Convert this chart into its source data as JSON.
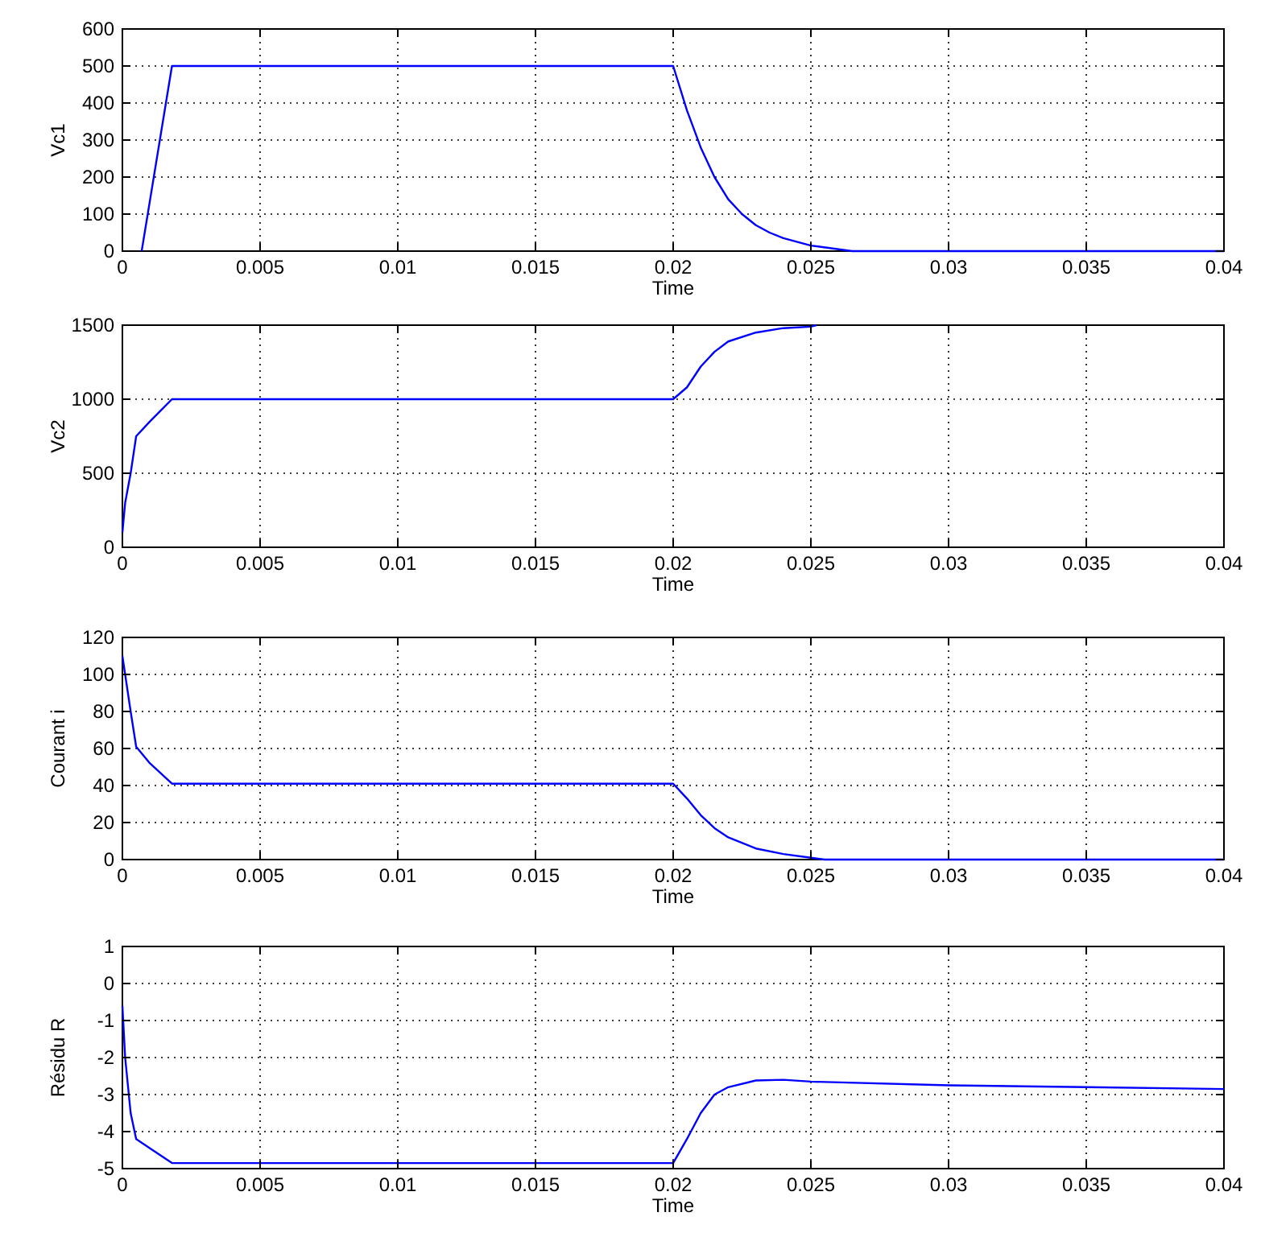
{
  "chart_data": [
    {
      "type": "line",
      "xlabel": "Time",
      "ylabel": "Vc1",
      "xlim": [
        0,
        0.04
      ],
      "ylim": [
        0,
        600
      ],
      "xticks": [
        0,
        0.005,
        0.01,
        0.015,
        0.02,
        0.025,
        0.03,
        0.035,
        0.04
      ],
      "yticks": [
        0,
        100,
        200,
        300,
        400,
        500,
        600
      ],
      "grid": true,
      "series": [
        {
          "color": "#0000ff",
          "x": [
            0.0007,
            0.0018,
            0.02,
            0.0205,
            0.021,
            0.0215,
            0.022,
            0.0225,
            0.023,
            0.0235,
            0.024,
            0.025,
            0.0265,
            0.04
          ],
          "values": [
            0,
            500,
            500,
            380,
            280,
            200,
            140,
            100,
            70,
            50,
            35,
            15,
            0,
            0
          ]
        }
      ]
    },
    {
      "type": "line",
      "xlabel": "Time",
      "ylabel": "Vc2",
      "xlim": [
        0,
        0.04
      ],
      "ylim": [
        0,
        1500
      ],
      "xticks": [
        0,
        0.005,
        0.01,
        0.015,
        0.02,
        0.025,
        0.03,
        0.035,
        0.04
      ],
      "yticks": [
        0,
        500,
        1000,
        1500
      ],
      "grid": true,
      "series": [
        {
          "color": "#0000ff",
          "x": [
            0,
            0.0001,
            0.0003,
            0.0005,
            0.001,
            0.0018,
            0.003,
            0.01,
            0.013,
            0.02,
            0.0205,
            0.021,
            0.0215,
            0.022,
            0.023,
            0.024,
            0.025,
            0.0252
          ],
          "values": [
            100,
            300,
            500,
            750,
            850,
            1000,
            1000,
            1000,
            1000,
            1000,
            1080,
            1220,
            1320,
            1390,
            1450,
            1480,
            1490,
            1500
          ]
        }
      ]
    },
    {
      "type": "line",
      "xlabel": "Time",
      "ylabel": "Courant i",
      "xlim": [
        0,
        0.04
      ],
      "ylim": [
        0,
        120
      ],
      "xticks": [
        0,
        0.005,
        0.01,
        0.015,
        0.02,
        0.025,
        0.03,
        0.035,
        0.04
      ],
      "yticks": [
        0,
        20,
        40,
        60,
        80,
        100,
        120
      ],
      "grid": true,
      "series": [
        {
          "color": "#0000ff",
          "x": [
            0,
            0.0001,
            0.0003,
            0.0005,
            0.001,
            0.0018,
            0.005,
            0.01,
            0.015,
            0.02,
            0.0205,
            0.021,
            0.0215,
            0.022,
            0.023,
            0.024,
            0.025,
            0.0255,
            0.04
          ],
          "values": [
            110,
            100,
            80,
            61,
            52,
            41,
            41,
            41,
            41,
            41,
            33,
            24,
            17,
            12,
            6,
            3,
            1,
            0,
            0
          ]
        }
      ]
    },
    {
      "type": "line",
      "xlabel": "Time",
      "ylabel": "Résidu R",
      "xlim": [
        0,
        0.04
      ],
      "ylim": [
        -5,
        1
      ],
      "xticks": [
        0,
        0.005,
        0.01,
        0.015,
        0.02,
        0.025,
        0.03,
        0.035,
        0.04
      ],
      "yticks": [
        -5,
        -4,
        -3,
        -2,
        -1,
        0,
        1
      ],
      "grid": true,
      "series": [
        {
          "color": "#0000ff",
          "x": [
            0,
            0.0001,
            0.0003,
            0.0005,
            0.001,
            0.0018,
            0.01,
            0.02,
            0.0205,
            0.021,
            0.0215,
            0.022,
            0.023,
            0.024,
            0.025,
            0.03,
            0.035,
            0.04
          ],
          "values": [
            -0.6,
            -2,
            -3.5,
            -4.2,
            -4.45,
            -4.85,
            -4.85,
            -4.85,
            -4.2,
            -3.5,
            -3,
            -2.8,
            -2.62,
            -2.6,
            -2.65,
            -2.75,
            -2.8,
            -2.85
          ]
        }
      ]
    }
  ]
}
